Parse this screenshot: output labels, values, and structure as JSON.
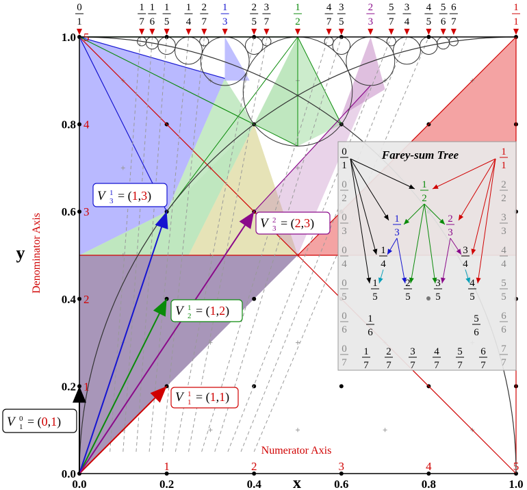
{
  "axes": {
    "x_label": "x",
    "y_label": "y",
    "numerator_axis_label": "Numerator  Axis",
    "denominator_axis_label": "Denominator  Axis",
    "x_ticks": [
      "0.0",
      "0.2",
      "0.4",
      "0.6",
      "0.8",
      "1.0"
    ],
    "y_ticks": [
      "0.0",
      "0.2",
      "0.4",
      "0.6",
      "0.8",
      "1.0"
    ],
    "numerator_ticks": [
      "1",
      "2",
      "3",
      "4",
      "5"
    ],
    "denominator_ticks": [
      "1",
      "2",
      "3",
      "4",
      "5"
    ]
  },
  "top_fractions": [
    {
      "num": "0",
      "den": "1",
      "color": "#000000"
    },
    {
      "num": "1",
      "den": "7",
      "color": "#000000"
    },
    {
      "num": "1",
      "den": "6",
      "color": "#000000"
    },
    {
      "num": "1",
      "den": "5",
      "color": "#000000"
    },
    {
      "num": "1",
      "den": "4",
      "color": "#000000"
    },
    {
      "num": "2",
      "den": "7",
      "color": "#000000"
    },
    {
      "num": "1",
      "den": "3",
      "color": "#1515d0"
    },
    {
      "num": "2",
      "den": "5",
      "color": "#000000"
    },
    {
      "num": "3",
      "den": "7",
      "color": "#000000"
    },
    {
      "num": "1",
      "den": "2",
      "color": "#0a8a0a"
    },
    {
      "num": "4",
      "den": "7",
      "color": "#000000"
    },
    {
      "num": "3",
      "den": "5",
      "color": "#000000"
    },
    {
      "num": "2",
      "den": "3",
      "color": "#8a0a8a"
    },
    {
      "num": "5",
      "den": "7",
      "color": "#000000"
    },
    {
      "num": "3",
      "den": "4",
      "color": "#000000"
    },
    {
      "num": "4",
      "den": "5",
      "color": "#000000"
    },
    {
      "num": "5",
      "den": "6",
      "color": "#000000"
    },
    {
      "num": "6",
      "den": "7",
      "color": "#000000"
    },
    {
      "num": "1",
      "den": "1",
      "color": "#d00000"
    }
  ],
  "vectors": [
    {
      "name": "V",
      "fn": "0",
      "fd": "1",
      "x": "0",
      "y": "1",
      "color": "#000000"
    },
    {
      "name": "V",
      "fn": "1",
      "fd": "1",
      "x": "1",
      "y": "1",
      "color": "#d00000"
    },
    {
      "name": "V",
      "fn": "1",
      "fd": "2",
      "x": "1",
      "y": "2",
      "color": "#0a8a0a"
    },
    {
      "name": "V",
      "fn": "1",
      "fd": "3",
      "x": "1",
      "y": "3",
      "color": "#1515d0"
    },
    {
      "name": "V",
      "fn": "2",
      "fd": "3",
      "x": "2",
      "y": "3",
      "color": "#8a0a8a"
    }
  ],
  "tree": {
    "title": "Farey-sum Tree",
    "nodes": [
      {
        "num": "1",
        "den": "2",
        "color": "#0a8a0a"
      },
      {
        "num": "1",
        "den": "3",
        "color": "#1515d0"
      },
      {
        "num": "2",
        "den": "3",
        "color": "#8a0a8a"
      },
      {
        "num": "1",
        "den": "4",
        "color": "#000000"
      },
      {
        "num": "3",
        "den": "4",
        "color": "#000000"
      },
      {
        "num": "1",
        "den": "5",
        "color": "#000000"
      },
      {
        "num": "2",
        "den": "5",
        "color": "#000000"
      },
      {
        "num": "3",
        "den": "5",
        "color": "#000000"
      },
      {
        "num": "4",
        "den": "5",
        "color": "#000000"
      },
      {
        "num": "1",
        "den": "6",
        "color": "#000000"
      },
      {
        "num": "5",
        "den": "6",
        "color": "#000000"
      },
      {
        "num": "1",
        "den": "7",
        "color": "#000000"
      },
      {
        "num": "2",
        "den": "7",
        "color": "#000000"
      },
      {
        "num": "3",
        "den": "7",
        "color": "#000000"
      },
      {
        "num": "4",
        "den": "7",
        "color": "#000000"
      },
      {
        "num": "5",
        "den": "7",
        "color": "#000000"
      },
      {
        "num": "6",
        "den": "7",
        "color": "#000000"
      }
    ],
    "left_column": [
      {
        "num": "0",
        "den": "1"
      },
      {
        "num": "0",
        "den": "2"
      },
      {
        "num": "0",
        "den": "3"
      },
      {
        "num": "0",
        "den": "4"
      },
      {
        "num": "0",
        "den": "5"
      },
      {
        "num": "0",
        "den": "6"
      },
      {
        "num": "0",
        "den": "7"
      }
    ],
    "right_column": [
      {
        "num": "1",
        "den": "1"
      },
      {
        "num": "2",
        "den": "2"
      },
      {
        "num": "3",
        "den": "3"
      },
      {
        "num": "4",
        "den": "4"
      },
      {
        "num": "5",
        "den": "5"
      },
      {
        "num": "6",
        "den": "6"
      },
      {
        "num": "7",
        "den": "7"
      }
    ]
  },
  "colors": {
    "red": "#d00000",
    "green": "#0a8a0a",
    "blue": "#1515d0",
    "purple": "#8a0a8a",
    "cyan": "#0aa0b8",
    "violet": "#705090",
    "red_fill": "#f08080",
    "blue_fill": "#8080ff",
    "green_fill": "#80d080",
    "purple_fill": "#c080c0"
  }
}
